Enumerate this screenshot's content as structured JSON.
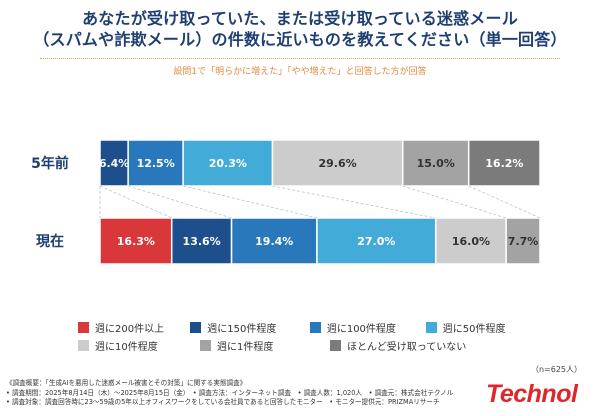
{
  "title": {
    "line1": "あなたが受け取っていた、または受け取っている迷惑メール",
    "line2": "（スパムや詐欺メール）の件数に近いものを教えてください（単一回答）"
  },
  "subtitle": "設問1で「明らかに増えた」「やや増えた」と回答した方が回答",
  "chart_data": {
    "type": "bar",
    "orientation": "horizontal-stacked-100",
    "categories": [
      "5年前",
      "現在"
    ],
    "series": [
      {
        "name": "週に200件以上",
        "color": "#d9373a",
        "values": [
          0,
          16.3
        ]
      },
      {
        "name": "週に150件程度",
        "color": "#1d4f8c",
        "values": [
          6.4,
          13.6
        ]
      },
      {
        "name": "週に100件程度",
        "color": "#2a78bc",
        "values": [
          12.5,
          19.4
        ]
      },
      {
        "name": "週に50件程度",
        "color": "#42abd7",
        "values": [
          20.3,
          27.0
        ]
      },
      {
        "name": "週に10件程度",
        "color": "#cccccc",
        "values": [
          29.6,
          16.0
        ]
      },
      {
        "name": "週に1件程度",
        "color": "#a3a3a3",
        "values": [
          15.0,
          7.7
        ]
      },
      {
        "name": "ほとんど受け取っていない",
        "color": "#7b7b7b",
        "values": [
          16.2,
          0
        ]
      }
    ],
    "value_labels": [
      [
        "",
        "6.4%",
        "12.5%",
        "20.3%",
        "29.6%",
        "15.0%",
        "16.2%"
      ],
      [
        "16.3%",
        "13.6%",
        "19.4%",
        "27.0%",
        "16.0%",
        "7.7%",
        ""
      ]
    ]
  },
  "legend": {
    "row1": [
      "週に200件以上",
      "週に150件程度",
      "週に100件程度",
      "週に50件程度"
    ],
    "row2": [
      "週に10件程度",
      "週に1件程度",
      "ほとんど受け取っていない"
    ]
  },
  "respondents": "（n=625人）",
  "survey": {
    "line1": "《調査概要：「生成AIを悪用した迷惑メール被害とその対策」に関する実態調査》",
    "line2": "• 調査期間：2025年8月14日（木）～2025年8月15日（金）　• 調査方法：インターネット調査　• 調査人数：1,020人　• 調査元：株式会社テクノル",
    "line3": "• 調査対象：調査回答時に23～59歳の5年以上オフィスワークをしている会社員であると回答したモニター　• モニター提供元：PRIZMAリサーチ"
  },
  "logo": "Technol"
}
